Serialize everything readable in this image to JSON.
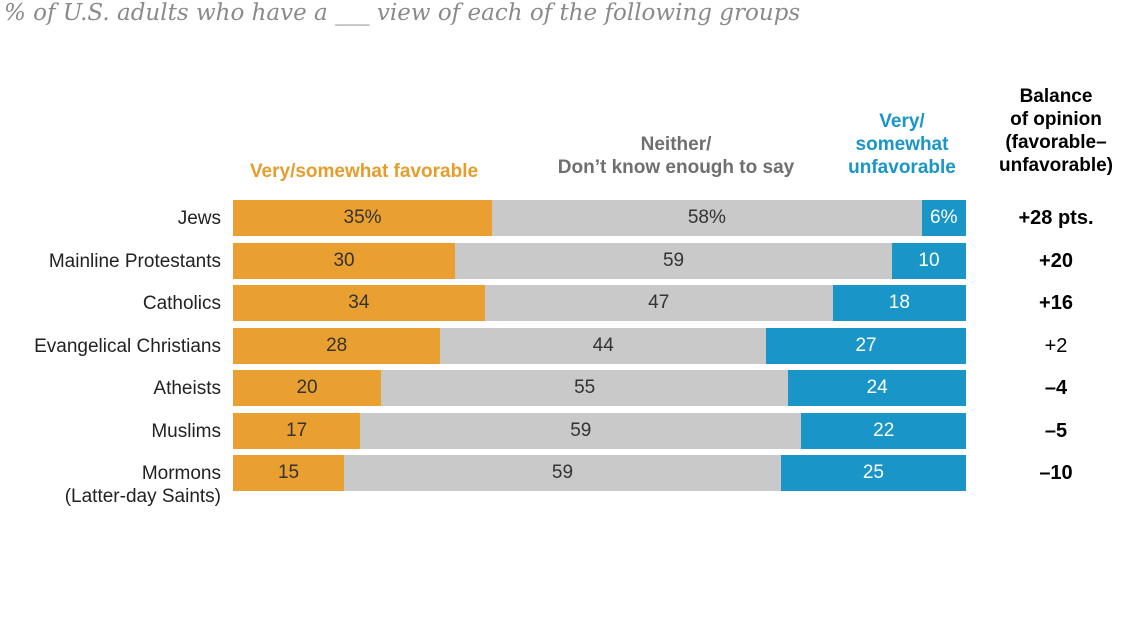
{
  "subtitle": "% of U.S. adults who have a ___ view of each of the following groups",
  "headers": {
    "favorable": "Very/somewhat favorable",
    "neither": [
      "Neither/",
      "Don’t know enough to say"
    ],
    "unfavorable": [
      "Very/",
      "somewhat",
      "unfavorable"
    ],
    "balance": [
      "Balance",
      "of opinion",
      "(favorable–",
      "unfavorable)"
    ]
  },
  "colors": {
    "favorable": "#e9a031",
    "neither": "#c9c9c9",
    "unfavorable": "#1a95c8"
  },
  "chart_data": {
    "type": "bar",
    "orientation": "horizontal",
    "stacked": true,
    "categories": [
      "Jews",
      "Mainline Protestants",
      "Catholics",
      "Evangelical Christians",
      "Atheists",
      "Muslims",
      "Mormons (Latter-day Saints)"
    ],
    "category_lines": [
      [
        "Jews"
      ],
      [
        "Mainline Protestants"
      ],
      [
        "Catholics"
      ],
      [
        "Evangelical Christians"
      ],
      [
        "Atheists"
      ],
      [
        "Muslims"
      ],
      [
        "Mormons",
        "(Latter-day Saints)"
      ]
    ],
    "series": [
      {
        "name": "Very/somewhat favorable",
        "values": [
          35,
          30,
          34,
          28,
          20,
          17,
          15
        ],
        "labels": [
          "35%",
          "30",
          "34",
          "28",
          "20",
          "17",
          "15"
        ]
      },
      {
        "name": "Neither/ Don’t know enough to say",
        "values": [
          58,
          59,
          47,
          44,
          55,
          59,
          59
        ],
        "labels": [
          "58%",
          "59",
          "47",
          "44",
          "55",
          "59",
          "59"
        ]
      },
      {
        "name": "Very/ somewhat unfavorable",
        "values": [
          6,
          10,
          18,
          27,
          24,
          22,
          25
        ],
        "labels": [
          "6%",
          "10",
          "18",
          "27",
          "24",
          "22",
          "25"
        ]
      }
    ],
    "balance": {
      "values": [
        28,
        20,
        16,
        2,
        -4,
        -5,
        -10
      ],
      "labels": [
        "+28 pts.",
        "+20",
        "+16",
        "+2",
        "–4",
        "–5",
        "–10"
      ],
      "bold": [
        true,
        true,
        true,
        false,
        true,
        true,
        true
      ]
    },
    "xlim": [
      0,
      100
    ]
  }
}
